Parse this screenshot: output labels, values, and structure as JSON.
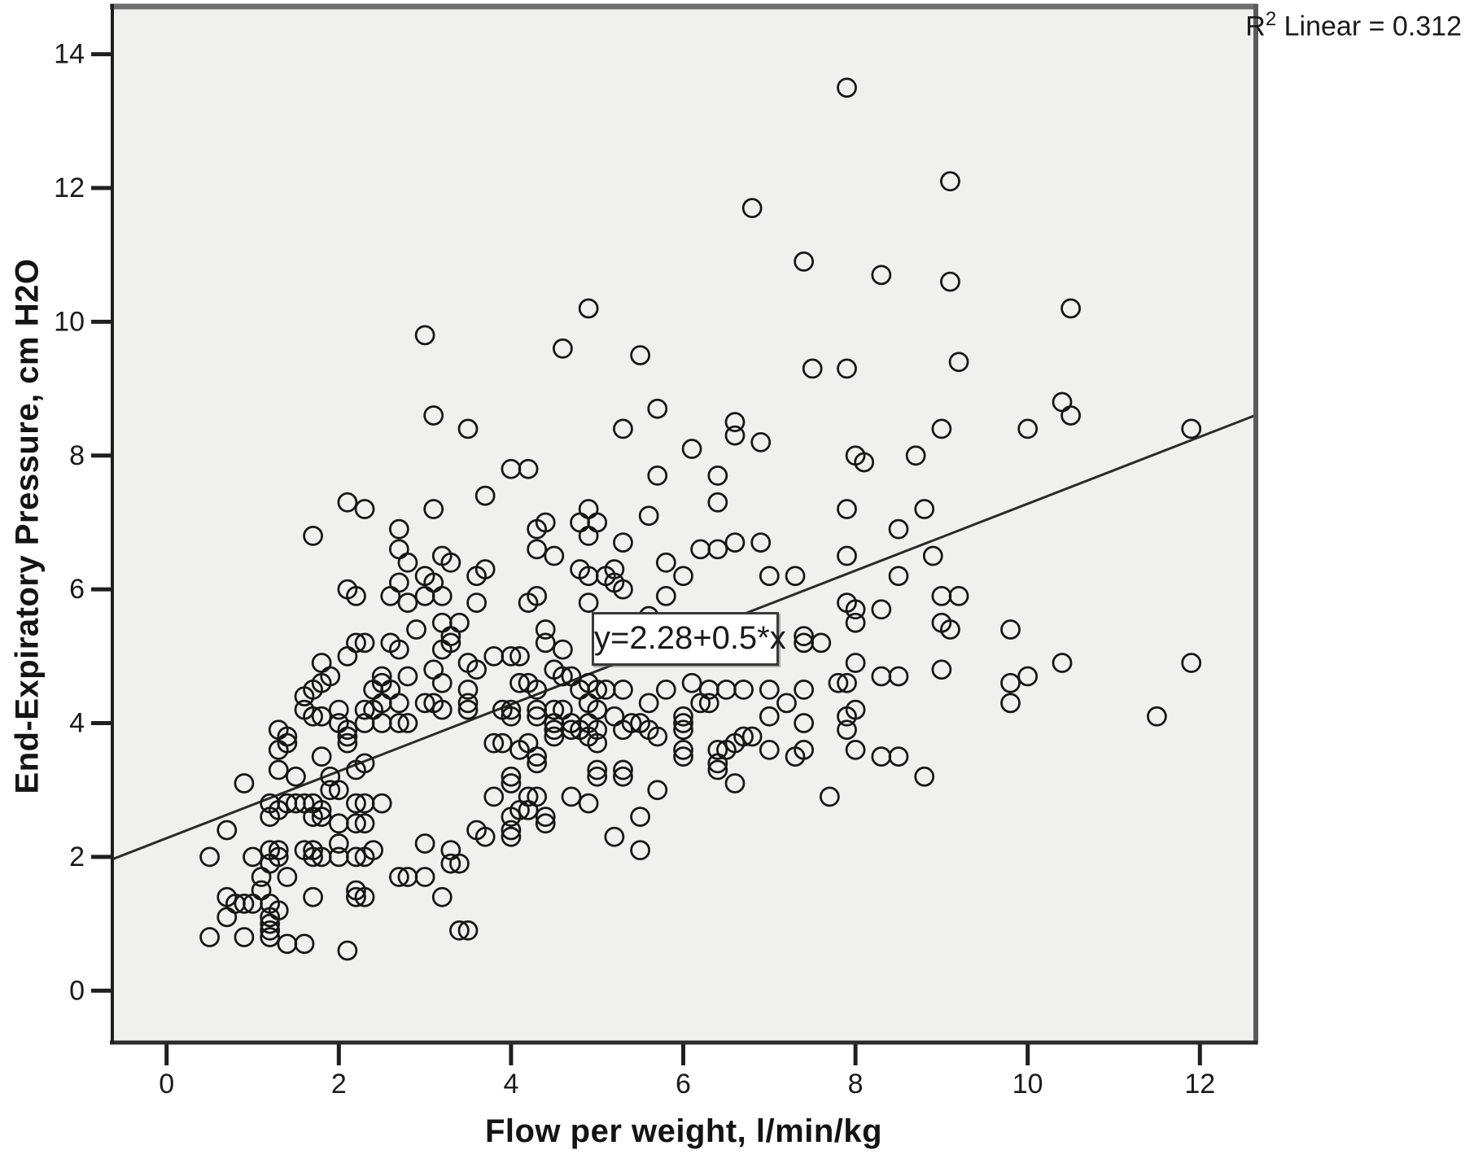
{
  "chart_data": {
    "type": "scatter",
    "title": "",
    "xlabel": "Flow per weight, l/min/kg",
    "ylabel": "End-Expiratory Pressure, cm H2O",
    "x_ticks": [
      0,
      2,
      4,
      6,
      8,
      10,
      12
    ],
    "y_ticks": [
      0,
      2,
      4,
      6,
      8,
      10,
      12,
      14
    ],
    "xlim": [
      -0.64,
      12.64
    ],
    "ylim": [
      -0.8,
      14.75
    ],
    "grid": false,
    "legend_position": "none",
    "annotation": {
      "r2_base": "R",
      "r2_sup": "2",
      "r2_tail": " Linear = 0.312"
    },
    "regression": {
      "intercept": 2.28,
      "slope": 0.5,
      "label": "y=2.28+0.5*x"
    },
    "marker": {
      "shape": "open-circle",
      "radius_px": 11,
      "stroke_px": 2.75
    },
    "colors": {
      "plot_bg": "#f0f0ee",
      "page_bg": "#ffffff",
      "marker": "#161616",
      "line": "#2a2a2a",
      "frame_top": "#6f6f6f",
      "frame_right": "#5a5a5a",
      "frame_bottom": "#2b2b2b",
      "frame_left": "#1f1f1f",
      "tick": "#1f1f1f",
      "tick_label": "#1a1a1a"
    },
    "points": [
      [
        3.0,
        9.8
      ],
      [
        7.9,
        13.5
      ],
      [
        6.8,
        11.7
      ],
      [
        7.4,
        10.9
      ],
      [
        4.9,
        10.2
      ],
      [
        9.1,
        12.1
      ],
      [
        8.3,
        10.7
      ],
      [
        9.1,
        10.6
      ],
      [
        10.5,
        10.2
      ],
      [
        4.6,
        9.6
      ],
      [
        5.5,
        9.5
      ],
      [
        7.5,
        9.3
      ],
      [
        7.9,
        9.3
      ],
      [
        5.7,
        8.7
      ],
      [
        5.3,
        8.4
      ],
      [
        6.6,
        8.5
      ],
      [
        6.6,
        8.3
      ],
      [
        6.9,
        8.2
      ],
      [
        6.1,
        8.1
      ],
      [
        8.0,
        8.0
      ],
      [
        8.1,
        7.9
      ],
      [
        5.7,
        7.7
      ],
      [
        6.4,
        7.7
      ],
      [
        4.0,
        7.8
      ],
      [
        4.2,
        7.8
      ],
      [
        6.4,
        7.3
      ],
      [
        7.9,
        7.2
      ],
      [
        4.4,
        7.0
      ],
      [
        4.9,
        7.2
      ],
      [
        4.8,
        7.0
      ],
      [
        5.0,
        7.0
      ],
      [
        4.9,
        6.8
      ],
      [
        4.3,
        6.9
      ],
      [
        4.3,
        6.6
      ],
      [
        5.6,
        7.1
      ],
      [
        5.3,
        6.7
      ],
      [
        6.2,
        6.6
      ],
      [
        6.4,
        6.6
      ],
      [
        6.6,
        6.7
      ],
      [
        6.9,
        6.7
      ],
      [
        4.5,
        6.5
      ],
      [
        5.8,
        6.4
      ],
      [
        6.0,
        6.2
      ],
      [
        7.9,
        6.5
      ],
      [
        4.8,
        6.3
      ],
      [
        4.9,
        6.2
      ],
      [
        5.1,
        6.2
      ],
      [
        5.2,
        6.3
      ],
      [
        5.2,
        6.1
      ],
      [
        5.3,
        6.0
      ],
      [
        5.8,
        5.9
      ],
      [
        4.2,
        5.8
      ],
      [
        4.3,
        5.9
      ],
      [
        4.9,
        5.8
      ],
      [
        7.0,
        6.2
      ],
      [
        7.3,
        6.2
      ],
      [
        7.9,
        5.8
      ],
      [
        8.0,
        5.7
      ],
      [
        8.0,
        5.5
      ],
      [
        7.4,
        5.3
      ],
      [
        7.4,
        5.2
      ],
      [
        7.6,
        5.2
      ],
      [
        4.4,
        5.4
      ],
      [
        4.4,
        5.2
      ],
      [
        4.6,
        5.1
      ],
      [
        4.0,
        5.0
      ],
      [
        4.1,
        5.0
      ],
      [
        5.6,
        5.6
      ],
      [
        3.8,
        5.0
      ],
      [
        4.2,
        4.6
      ],
      [
        4.1,
        4.6
      ],
      [
        4.3,
        4.5
      ],
      [
        4.5,
        4.8
      ],
      [
        4.6,
        4.7
      ],
      [
        4.7,
        4.7
      ],
      [
        4.8,
        4.5
      ],
      [
        4.9,
        4.6
      ],
      [
        5.0,
        4.5
      ],
      [
        5.1,
        4.5
      ],
      [
        5.3,
        4.5
      ],
      [
        6.1,
        4.6
      ],
      [
        5.8,
        4.5
      ],
      [
        6.3,
        4.5
      ],
      [
        6.5,
        4.5
      ],
      [
        6.7,
        4.5
      ],
      [
        7.0,
        4.5
      ],
      [
        7.4,
        4.5
      ],
      [
        8.0,
        4.9
      ],
      [
        7.8,
        4.6
      ],
      [
        7.9,
        4.6
      ],
      [
        3.1,
        8.6
      ],
      [
        3.5,
        8.4
      ],
      [
        2.1,
        7.3
      ],
      [
        2.3,
        7.2
      ],
      [
        3.1,
        7.2
      ],
      [
        3.7,
        7.4
      ],
      [
        2.7,
        6.9
      ],
      [
        1.7,
        6.8
      ],
      [
        2.7,
        6.6
      ],
      [
        2.8,
        6.4
      ],
      [
        3.2,
        6.5
      ],
      [
        3.3,
        6.4
      ],
      [
        3.6,
        6.2
      ],
      [
        3.7,
        6.3
      ],
      [
        2.7,
        6.1
      ],
      [
        3.0,
        6.2
      ],
      [
        3.1,
        6.1
      ],
      [
        3.0,
        5.9
      ],
      [
        3.2,
        5.9
      ],
      [
        2.6,
        5.9
      ],
      [
        2.8,
        5.8
      ],
      [
        2.1,
        6.0
      ],
      [
        2.2,
        5.9
      ],
      [
        3.6,
        5.8
      ],
      [
        2.9,
        5.4
      ],
      [
        3.2,
        5.5
      ],
      [
        3.4,
        5.5
      ],
      [
        3.3,
        5.3
      ],
      [
        3.3,
        5.2
      ],
      [
        3.2,
        5.1
      ],
      [
        2.2,
        5.2
      ],
      [
        2.3,
        5.2
      ],
      [
        2.6,
        5.2
      ],
      [
        2.7,
        5.1
      ],
      [
        1.8,
        4.9
      ],
      [
        2.1,
        5.0
      ],
      [
        1.9,
        4.7
      ],
      [
        1.8,
        4.6
      ],
      [
        1.7,
        4.5
      ],
      [
        2.8,
        4.7
      ],
      [
        2.5,
        4.7
      ],
      [
        2.5,
        4.6
      ],
      [
        2.4,
        4.5
      ],
      [
        2.6,
        4.5
      ],
      [
        3.1,
        4.8
      ],
      [
        3.2,
        4.6
      ],
      [
        3.5,
        4.9
      ],
      [
        3.6,
        4.8
      ],
      [
        3.5,
        4.5
      ],
      [
        9.2,
        9.4
      ],
      [
        10.4,
        8.8
      ],
      [
        10.5,
        8.6
      ],
      [
        9.0,
        8.4
      ],
      [
        10.0,
        8.4
      ],
      [
        8.7,
        8.0
      ],
      [
        11.9,
        8.4
      ],
      [
        8.8,
        7.2
      ],
      [
        8.5,
        6.9
      ],
      [
        8.9,
        6.5
      ],
      [
        8.5,
        6.2
      ],
      [
        9.0,
        5.9
      ],
      [
        9.2,
        5.9
      ],
      [
        8.3,
        5.7
      ],
      [
        9.0,
        5.5
      ],
      [
        9.1,
        5.4
      ],
      [
        9.8,
        5.4
      ],
      [
        11.9,
        4.9
      ],
      [
        9.0,
        4.8
      ],
      [
        8.5,
        4.7
      ],
      [
        8.3,
        4.7
      ],
      [
        10.0,
        4.7
      ],
      [
        9.8,
        4.6
      ],
      [
        10.4,
        4.9
      ],
      [
        11.5,
        4.1
      ],
      [
        8.5,
        3.5
      ],
      [
        8.3,
        3.5
      ],
      [
        8.8,
        3.2
      ],
      [
        9.8,
        4.3
      ],
      [
        1.6,
        4.2
      ],
      [
        1.7,
        4.1
      ],
      [
        1.8,
        4.1
      ],
      [
        1.6,
        4.4
      ],
      [
        2.0,
        4.2
      ],
      [
        2.0,
        4.0
      ],
      [
        2.1,
        3.9
      ],
      [
        2.3,
        4.2
      ],
      [
        2.4,
        4.2
      ],
      [
        2.5,
        4.3
      ],
      [
        2.5,
        4.0
      ],
      [
        2.7,
        4.0
      ],
      [
        2.8,
        4.0
      ],
      [
        3.0,
        4.3
      ],
      [
        3.1,
        4.3
      ],
      [
        3.2,
        4.2
      ],
      [
        3.5,
        4.3
      ],
      [
        3.5,
        4.2
      ],
      [
        2.7,
        4.3
      ],
      [
        1.3,
        3.9
      ],
      [
        1.4,
        3.8
      ],
      [
        1.4,
        3.7
      ],
      [
        1.3,
        3.6
      ],
      [
        1.3,
        3.3
      ],
      [
        1.8,
        3.5
      ],
      [
        2.1,
        3.8
      ],
      [
        2.1,
        3.7
      ],
      [
        2.3,
        4.0
      ],
      [
        2.3,
        3.4
      ],
      [
        2.2,
        3.3
      ],
      [
        1.9,
        3.2
      ],
      [
        2.0,
        3.0
      ],
      [
        1.9,
        3.0
      ],
      [
        1.5,
        3.2
      ],
      [
        0.9,
        3.1
      ],
      [
        1.2,
        2.8
      ],
      [
        1.3,
        2.7
      ],
      [
        1.2,
        2.6
      ],
      [
        1.4,
        2.8
      ],
      [
        1.5,
        2.8
      ],
      [
        1.6,
        2.8
      ],
      [
        1.7,
        2.8
      ],
      [
        1.8,
        2.7
      ],
      [
        1.7,
        2.6
      ],
      [
        1.8,
        2.6
      ],
      [
        2.0,
        2.5
      ],
      [
        2.2,
        2.8
      ],
      [
        2.3,
        2.8
      ],
      [
        2.2,
        2.5
      ],
      [
        2.3,
        2.5
      ],
      [
        2.5,
        2.8
      ],
      [
        0.7,
        2.4
      ],
      [
        0.5,
        2.0
      ],
      [
        1.0,
        2.0
      ],
      [
        1.1,
        1.7
      ],
      [
        1.2,
        2.1
      ],
      [
        1.3,
        2.1
      ],
      [
        1.3,
        2.0
      ],
      [
        1.2,
        1.9
      ],
      [
        1.4,
        1.7
      ],
      [
        1.6,
        2.1
      ],
      [
        1.7,
        2.0
      ],
      [
        1.7,
        2.1
      ],
      [
        1.8,
        2.0
      ],
      [
        2.0,
        2.2
      ],
      [
        2.0,
        2.0
      ],
      [
        2.2,
        2.0
      ],
      [
        2.3,
        2.0
      ],
      [
        2.4,
        2.1
      ],
      [
        2.7,
        1.7
      ],
      [
        2.8,
        1.7
      ],
      [
        2.2,
        1.5
      ],
      [
        2.2,
        1.4
      ],
      [
        2.3,
        1.4
      ],
      [
        1.7,
        1.4
      ],
      [
        1.1,
        1.5
      ],
      [
        1.2,
        1.3
      ],
      [
        1.3,
        1.2
      ],
      [
        0.7,
        1.4
      ],
      [
        0.8,
        1.3
      ],
      [
        0.7,
        1.1
      ],
      [
        0.9,
        1.3
      ],
      [
        1.0,
        1.3
      ],
      [
        1.2,
        1.1
      ],
      [
        1.2,
        1.0
      ],
      [
        0.5,
        0.8
      ],
      [
        0.9,
        0.8
      ],
      [
        1.2,
        0.9
      ],
      [
        1.2,
        0.8
      ],
      [
        1.4,
        0.7
      ],
      [
        1.6,
        0.7
      ],
      [
        2.1,
        0.6
      ],
      [
        3.0,
        2.2
      ],
      [
        3.3,
        2.1
      ],
      [
        3.3,
        1.9
      ],
      [
        3.4,
        1.9
      ],
      [
        3.6,
        2.4
      ],
      [
        3.7,
        2.3
      ],
      [
        3.0,
        1.7
      ],
      [
        3.2,
        1.4
      ],
      [
        3.4,
        0.9
      ],
      [
        3.5,
        0.9
      ],
      [
        3.9,
        4.2
      ],
      [
        4.0,
        4.2
      ],
      [
        4.0,
        4.1
      ],
      [
        4.3,
        4.2
      ],
      [
        4.3,
        4.1
      ],
      [
        3.9,
        3.7
      ],
      [
        4.1,
        3.6
      ],
      [
        4.2,
        3.7
      ],
      [
        4.3,
        3.5
      ],
      [
        4.3,
        3.4
      ],
      [
        4.5,
        4.2
      ],
      [
        4.6,
        4.2
      ],
      [
        4.5,
        4.0
      ],
      [
        4.7,
        4.0
      ],
      [
        4.7,
        3.9
      ],
      [
        4.8,
        3.9
      ],
      [
        4.5,
        3.9
      ],
      [
        4.5,
        3.8
      ],
      [
        4.9,
        4.3
      ],
      [
        5.0,
        4.2
      ],
      [
        4.9,
        4.0
      ],
      [
        5.0,
        3.9
      ],
      [
        4.9,
        3.8
      ],
      [
        5.0,
        3.7
      ],
      [
        5.2,
        4.1
      ],
      [
        5.3,
        3.9
      ],
      [
        5.4,
        4.0
      ],
      [
        5.5,
        4.0
      ],
      [
        5.6,
        3.9
      ],
      [
        5.7,
        3.8
      ],
      [
        5.6,
        4.3
      ],
      [
        6.0,
        4.1
      ],
      [
        6.0,
        4.0
      ],
      [
        6.0,
        3.9
      ],
      [
        6.0,
        3.6
      ],
      [
        6.0,
        3.5
      ],
      [
        6.2,
        4.3
      ],
      [
        6.3,
        4.3
      ],
      [
        6.4,
        3.6
      ],
      [
        6.5,
        3.6
      ],
      [
        6.6,
        3.7
      ],
      [
        6.7,
        3.8
      ],
      [
        6.8,
        3.8
      ],
      [
        6.4,
        3.4
      ],
      [
        6.4,
        3.3
      ],
      [
        6.6,
        3.1
      ],
      [
        7.0,
        4.1
      ],
      [
        7.0,
        3.6
      ],
      [
        7.4,
        4.0
      ],
      [
        7.4,
        3.6
      ],
      [
        7.3,
        3.5
      ],
      [
        7.7,
        2.9
      ],
      [
        7.9,
        4.1
      ],
      [
        8.0,
        4.2
      ],
      [
        7.9,
        3.9
      ],
      [
        8.0,
        3.6
      ],
      [
        7.2,
        4.3
      ],
      [
        4.0,
        3.2
      ],
      [
        4.0,
        3.1
      ],
      [
        4.2,
        2.9
      ],
      [
        4.3,
        2.9
      ],
      [
        4.1,
        2.7
      ],
      [
        4.2,
        2.7
      ],
      [
        4.4,
        2.6
      ],
      [
        4.4,
        2.5
      ],
      [
        4.0,
        2.6
      ],
      [
        4.0,
        2.4
      ],
      [
        4.0,
        2.3
      ],
      [
        4.7,
        2.9
      ],
      [
        4.9,
        2.8
      ],
      [
        5.0,
        3.3
      ],
      [
        5.0,
        3.2
      ],
      [
        5.3,
        3.3
      ],
      [
        5.3,
        3.2
      ],
      [
        5.2,
        2.3
      ],
      [
        5.5,
        2.6
      ],
      [
        5.5,
        2.1
      ],
      [
        5.7,
        3.0
      ],
      [
        3.8,
        3.7
      ],
      [
        3.8,
        2.9
      ]
    ]
  }
}
